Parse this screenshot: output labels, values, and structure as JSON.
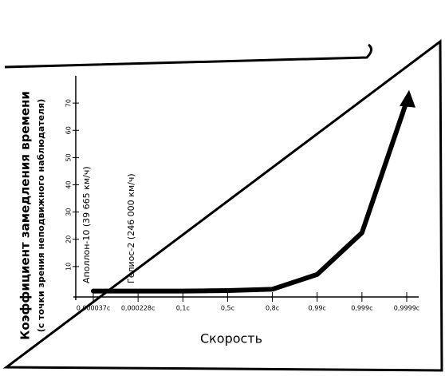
{
  "chart_data": {
    "type": "line",
    "y_label": [
      "Коэффициент замедления времени",
      "(с точки зрения неподвижного наблюдателя)"
    ],
    "x_label": "Скорость",
    "categories": [
      "0,000037c",
      "0,000228c",
      "0,1c",
      "0,5c",
      "0,8c",
      "0,99c",
      "0,999c",
      "0,9999c"
    ],
    "values": [
      1,
      1,
      1.005,
      1.155,
      1.667,
      7.09,
      22.4,
      70.7
    ],
    "annotations": [
      "Аполлон-10 (39 665 км/ч)",
      "Гелиос-2 (246 000 км/ч)"
    ],
    "ylim": [
      0,
      80
    ],
    "yticks": [
      10,
      20,
      30,
      40,
      50,
      60,
      70
    ],
    "color": "#000000"
  }
}
